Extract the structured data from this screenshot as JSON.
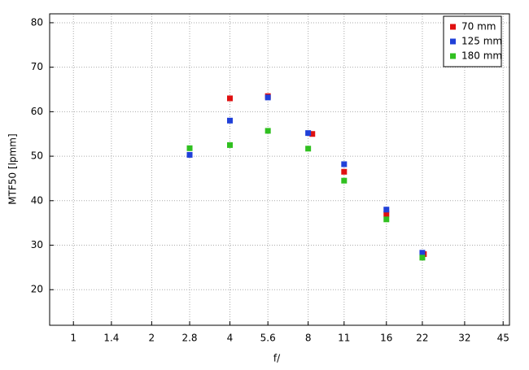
{
  "chart_data": {
    "type": "scatter",
    "x_label": "f/",
    "y_label": "MTF50 [lpmm]",
    "xscale": "log",
    "grid": true,
    "legend": "upper right",
    "xlim": [
      0.81,
      47.6
    ],
    "ylim": [
      12,
      82
    ],
    "xticks": [
      1,
      1.4,
      2,
      2.8,
      4,
      5.6,
      8,
      11,
      16,
      22,
      32,
      45
    ],
    "yticks": [
      20,
      30,
      40,
      50,
      60,
      70,
      80
    ],
    "series": [
      {
        "name": "70 mm",
        "color": "#e01010",
        "x": [
          4,
          5.6,
          8.3,
          11,
          16,
          22.3
        ],
        "values": [
          63,
          63.5,
          55,
          46.5,
          37,
          28
        ]
      },
      {
        "name": "125 mm",
        "color": "#2040d8",
        "x": [
          2.8,
          4,
          5.6,
          8,
          11,
          16,
          22
        ],
        "values": [
          50.3,
          58,
          63.2,
          55.2,
          48.2,
          38,
          28.3
        ]
      },
      {
        "name": "180 mm",
        "color": "#30c020",
        "x": [
          2.8,
          4,
          5.6,
          8,
          11,
          16,
          22
        ],
        "values": [
          51.8,
          52.5,
          55.7,
          51.7,
          44.5,
          35.8,
          27.2
        ]
      }
    ]
  }
}
